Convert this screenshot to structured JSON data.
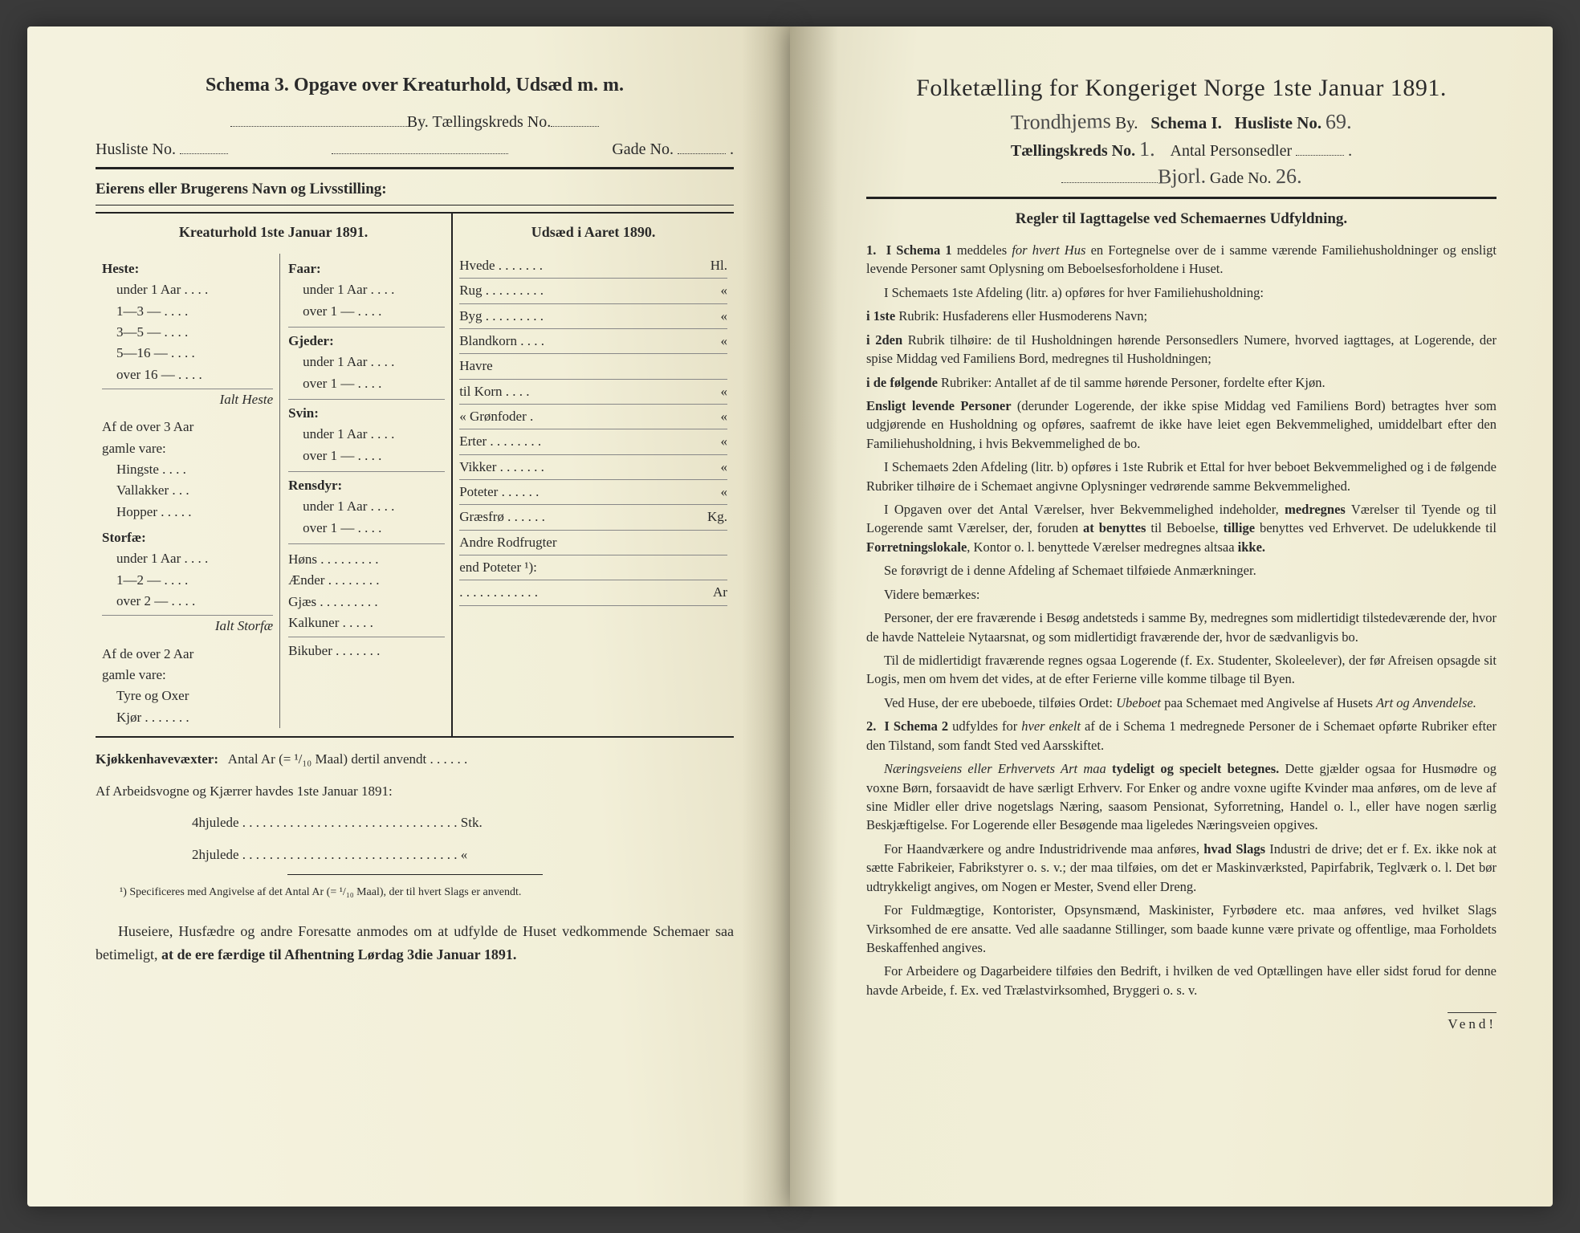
{
  "left": {
    "title": "Schema 3.   Opgave over Kreaturhold, Udsæd m. m.",
    "line1_a": "By.  Tællingskreds No.",
    "line2_a": "Husliste No.",
    "line2_b": "Gade No.",
    "owner": "Eierens eller Brugerens Navn og Livsstilling:",
    "kr_title": "Kreaturhold 1ste Januar 1891.",
    "uds_title": "Udsæd i Aaret 1890.",
    "kr_left": {
      "heste": "Heste:",
      "heste_rows": [
        "under 1 Aar . . . .",
        "1—3  —  . . . .",
        "3—5  —  . . . .",
        "5—16 —  . . . .",
        "over 16 —  . . . ."
      ],
      "ialt_heste": "Ialt Heste",
      "af_over3": "Af de over 3 Aar",
      "gamle": "gamle vare:",
      "gamle_rows": [
        "Hingste . . . .",
        "Vallakker . . .",
        "Hopper . . . . ."
      ],
      "storfae": "Storfæ:",
      "storfae_rows": [
        "under 1 Aar . . . .",
        "1—2  —  . . . .",
        "over 2  —  . . . ."
      ],
      "ialt_storfae": "Ialt Storfæ",
      "af_over2": "Af de over 2 Aar",
      "gamle2": "gamle vare:",
      "gamle2_rows": [
        "Tyre og Oxer",
        "Kjør . . . . . . ."
      ]
    },
    "kr_right": {
      "faar": "Faar:",
      "faar_rows": [
        "under 1 Aar . . . .",
        "over 1  —  . . . ."
      ],
      "gjeder": "Gjeder:",
      "gjeder_rows": [
        "under 1 Aar . . . .",
        "over 1  —  . . . ."
      ],
      "svin": "Svin:",
      "svin_rows": [
        "under 1 Aar . . . .",
        "over 1  —  . . . ."
      ],
      "rensdyr": "Rensdyr:",
      "rensdyr_rows": [
        "under 1 Aar . . . .",
        "over 1  —  . . . ."
      ],
      "others": [
        "Høns . . . . . . . . .",
        "Ænder . . . . . . . .",
        "Gjæs . . . . . . . . .",
        "Kalkuner . . . . .",
        "Bikuber . . . . . . ."
      ]
    },
    "uds_rows": [
      [
        "Hvede . . . . . . .",
        "Hl."
      ],
      [
        "Rug . . . . . . . . .",
        "«"
      ],
      [
        "Byg . . . . . . . . .",
        "«"
      ],
      [
        "Blandkorn . . . .",
        "«"
      ],
      [
        "Havre",
        ""
      ],
      [
        "   til Korn . . . .",
        "«"
      ],
      [
        "   «  Grønfoder .",
        "«"
      ],
      [
        "Erter . . . . . . . .",
        "«"
      ],
      [
        "Vikker . . . . . . .",
        "«"
      ],
      [
        "Poteter . . . . . .",
        "«"
      ],
      [
        "Græsfrø . . . . . .",
        "Kg."
      ],
      [
        "Andre Rodfrugter",
        ""
      ],
      [
        "end Poteter ¹):",
        ""
      ],
      [
        ". . . . . . . . . . . .",
        "Ar"
      ]
    ],
    "kjokken": "Kjøkkenhavevæxter:   Antal Ar (= ¹/₁₀ Maal) dertil anvendt . . . . . .",
    "arbeid": "Af Arbeidsvogne og Kjærrer havdes 1ste Januar 1891:",
    "arbeid_rows": [
      "4hjulede . . . . . . . . . . . . . . . . . . . . . . . . . . . . . . . . Stk.",
      "2hjulede . . . . . . . . . . . . . . . . . . . . . . . . . . . . . . . .  «"
    ],
    "footnote": "¹) Specificeres med Angivelse af det Antal Ar (= ¹/₁₀ Maal), der til hvert Slags er anvendt.",
    "closing": "Huseiere, Husfædre og andre Foresatte anmodes om at udfylde de Huset vedkommende Schemaer saa betimeligt, at de ere færdige til Afhentning Lørdag 3die Januar 1891."
  },
  "right": {
    "title": "Folketælling for Kongeriget Norge 1ste Januar 1891.",
    "hand_city": "Trondhjems",
    "by": "By.",
    "schema": "Schema I.",
    "husliste": "Husliste No.",
    "hand_husliste": "69.",
    "taelling": "Tællingskreds No.",
    "hand_kreds": "1.",
    "antal": "Antal Personsedler",
    "gade_hand": "Bjorl.",
    "gade": "Gade No.",
    "hand_gade": "26.",
    "rules_title": "Regler til Iagttagelse ved Schemaernes Udfyldning.",
    "p1": "I Schema 1 meddeles for hvert Hus en Fortegnelse over de i samme værende Familiehusholdninger og ensligt levende Personer samt Oplysning om Beboelsesforholdene i Huset.",
    "p2": "I Schemaets 1ste Afdeling (litr. a) opføres for hver Familiehusholdning:",
    "p3": "i 1ste Rubrik: Husfaderens eller Husmoderens Navn;",
    "p4": "i 2den Rubrik tilhøire: de til Husholdningen hørende Personsedlers Numere, hvorved iagttages, at Logerende, der spise Middag ved Familiens Bord, medregnes til Husholdningen;",
    "p5": "i de følgende Rubriker: Antallet af de til samme hørende Personer, fordelte efter Kjøn.",
    "p6": "Ensligt levende Personer (derunder Logerende, der ikke spise Middag ved Familiens Bord) betragtes hver som udgjørende en Husholdning og opføres, saafremt de ikke have leiet egen Bekvemmelighed, umiddelbart efter den Familiehusholdning, i hvis Bekvemmelighed de bo.",
    "p7": "I Schemaets 2den Afdeling (litr. b) opføres i 1ste Rubrik et Ettal for hver beboet Bekvemmelighed og i de følgende Rubriker tilhøire de i Schemaet angivne Oplysninger vedrørende samme Bekvemmelighed.",
    "p8": "I Opgaven over det Antal Værelser, hver Bekvemmelighed indeholder, medregnes Værelser til Tyende og til Logerende samt Værelser, der, foruden at benyttes til Beboelse, tillige benyttes ved Erhvervet. De udelukkende til Forretningslokale, Kontor o. l. benyttede Værelser medregnes altsaa ikke.",
    "p9": "Se forøvrigt de i denne Afdeling af Schemaet tilføiede Anmærkninger.",
    "p10": "Videre bemærkes:",
    "p11": "Personer, der ere fraværende i Besøg andetsteds i samme By, medregnes som midlertidigt tilstedeværende der, hvor de havde Natteleie Nytaarsnat, og som midlertidigt fraværende der, hvor de sædvanligvis bo.",
    "p12": "Til de midlertidigt fraværende regnes ogsaa Logerende (f. Ex. Studenter, Skoleelever), der før Afreisen opsagde sit Logis, men om hvem det vides, at de efter Ferierne ville komme tilbage til Byen.",
    "p13": "Ved Huse, der ere ubeboede, tilføies Ordet: Ubeboet paa Schemaet med Angivelse af Husets Art og Anvendelse.",
    "p14": "I Schema 2 udfyldes for hver enkelt af de i Schema 1 medregnede Personer de i Schemaet opførte Rubriker efter den Tilstand, som fandt Sted ved Aarsskiftet.",
    "p15": "Næringsveiens eller Erhvervets Art maa tydeligt og specielt betegnes. Dette gjælder ogsaa for Husmødre og voxne Børn, forsaavidt de have særligt Erhverv. For Enker og andre voxne ugifte Kvinder maa anføres, om de leve af sine Midler eller drive nogetslags Næring, saasom Pensionat, Syforretning, Handel o. l., eller have nogen særlig Beskjæftigelse. For Logerende eller Besøgende maa ligeledes Næringsveien opgives.",
    "p16": "For Haandværkere og andre Industridrivende maa anføres, hvad Slags Industri de drive; det er f. Ex. ikke nok at sætte Fabrikeier, Fabrikstyrer o. s. v.; der maa tilføies, om det er Maskinværksted, Papirfabrik, Teglværk o. l. Det bør udtrykkeligt angives, om Nogen er Mester, Svend eller Dreng.",
    "p17": "For Fuldmægtige, Kontorister, Opsynsmænd, Maskinister, Fyrbødere etc. maa anføres, ved hvilket Slags Virksomhed de ere ansatte. Ved alle saadanne Stillinger, som baade kunne være private og offentlige, maa Forholdets Beskaffenhed angives.",
    "p18": "For Arbeidere og Dagarbeidere tilføies den Bedrift, i hvilken de ved Optællingen have eller sidst forud for denne havde Arbeide, f. Ex. ved Trælastvirksomhed, Bryggeri o. s. v.",
    "vend": "Vend!"
  }
}
